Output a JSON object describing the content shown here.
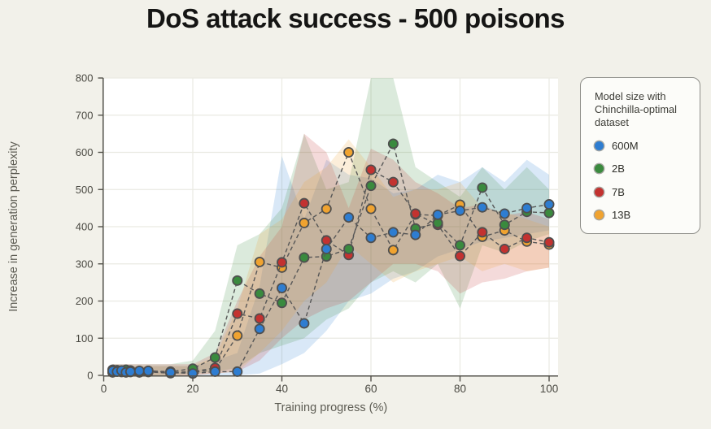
{
  "title": "DoS attack success - 500 poisons",
  "legend": {
    "title": "Model size with Chinchilla-optimal dataset",
    "items": [
      {
        "label": "600M",
        "color": "#2e7dd1"
      },
      {
        "label": "2B",
        "color": "#3a8a3e"
      },
      {
        "label": "7B",
        "color": "#c33230"
      },
      {
        "label": "13B",
        "color": "#f0a330"
      }
    ]
  },
  "chart_data": {
    "type": "line",
    "title": "DoS attack success - 500 poisons",
    "xlabel": "Training progress (%)",
    "ylabel": "Increase in generation perplexity",
    "xlim": [
      0,
      102
    ],
    "ylim": [
      0,
      800
    ],
    "x_ticks": [
      0,
      20,
      40,
      60,
      80,
      100
    ],
    "y_ticks": [
      0,
      100,
      200,
      300,
      400,
      500,
      600,
      700,
      800
    ],
    "grid": true,
    "legend_position": "right",
    "line_style": "dashed-gray",
    "marker": "circle",
    "x": [
      2,
      3,
      4,
      5,
      6,
      8,
      10,
      15,
      20,
      25,
      30,
      35,
      40,
      45,
      50,
      55,
      60,
      65,
      70,
      75,
      80,
      85,
      90,
      95,
      100
    ],
    "series": [
      {
        "name": "600M",
        "color": "#2e7dd1",
        "values": [
          12,
          10,
          13,
          8,
          10,
          12,
          12,
          8,
          5,
          10,
          10,
          125,
          235,
          140,
          340,
          425,
          370,
          385,
          378,
          432,
          443,
          452,
          435,
          450,
          460
        ],
        "band_low": [
          0,
          0,
          0,
          0,
          0,
          0,
          0,
          0,
          0,
          0,
          0,
          5,
          30,
          60,
          120,
          200,
          220,
          260,
          280,
          320,
          340,
          360,
          370,
          380,
          390
        ],
        "band_high": [
          25,
          25,
          25,
          25,
          25,
          25,
          25,
          25,
          25,
          40,
          60,
          240,
          590,
          420,
          580,
          540,
          530,
          490,
          500,
          540,
          520,
          560,
          520,
          580,
          540
        ]
      },
      {
        "name": "2B",
        "color": "#3a8a3e",
        "values": [
          15,
          14,
          12,
          15,
          13,
          10,
          12,
          10,
          18,
          48,
          255,
          220,
          195,
          317,
          320,
          340,
          510,
          623,
          395,
          410,
          350,
          505,
          405,
          440,
          437
        ],
        "band_low": [
          0,
          0,
          0,
          0,
          0,
          0,
          0,
          0,
          5,
          10,
          20,
          60,
          80,
          100,
          150,
          180,
          250,
          280,
          250,
          300,
          180,
          350,
          330,
          360,
          380
        ],
        "band_high": [
          30,
          30,
          30,
          30,
          30,
          30,
          30,
          30,
          40,
          120,
          350,
          380,
          450,
          650,
          500,
          520,
          800,
          800,
          560,
          520,
          480,
          560,
          500,
          560,
          500
        ]
      },
      {
        "name": "7B",
        "color": "#c33230",
        "values": [
          10,
          12,
          10,
          12,
          11,
          10,
          10,
          8,
          10,
          20,
          166,
          153,
          304,
          463,
          363,
          324,
          553,
          520,
          435,
          405,
          321,
          385,
          340,
          370,
          358
        ],
        "band_low": [
          0,
          0,
          0,
          0,
          0,
          0,
          0,
          0,
          0,
          5,
          10,
          40,
          100,
          150,
          180,
          200,
          250,
          300,
          300,
          280,
          220,
          250,
          260,
          280,
          290
        ],
        "band_high": [
          30,
          30,
          30,
          30,
          30,
          30,
          30,
          30,
          30,
          60,
          200,
          320,
          400,
          650,
          600,
          450,
          610,
          580,
          520,
          490,
          450,
          460,
          430,
          440,
          420
        ]
      },
      {
        "name": "13B",
        "color": "#f0a330",
        "values": [
          8,
          10,
          9,
          10,
          9,
          8,
          9,
          6,
          8,
          15,
          107,
          305,
          290,
          410,
          448,
          600,
          448,
          337,
          433,
          430,
          459,
          373,
          390,
          360,
          352
        ],
        "band_low": [
          0,
          0,
          0,
          0,
          0,
          0,
          0,
          0,
          0,
          5,
          10,
          60,
          120,
          200,
          250,
          350,
          300,
          250,
          280,
          300,
          320,
          280,
          300,
          280,
          290
        ],
        "band_high": [
          25,
          25,
          25,
          25,
          25,
          25,
          25,
          25,
          25,
          50,
          180,
          380,
          420,
          520,
          560,
          635,
          560,
          480,
          500,
          500,
          520,
          450,
          440,
          420,
          400
        ]
      }
    ]
  }
}
